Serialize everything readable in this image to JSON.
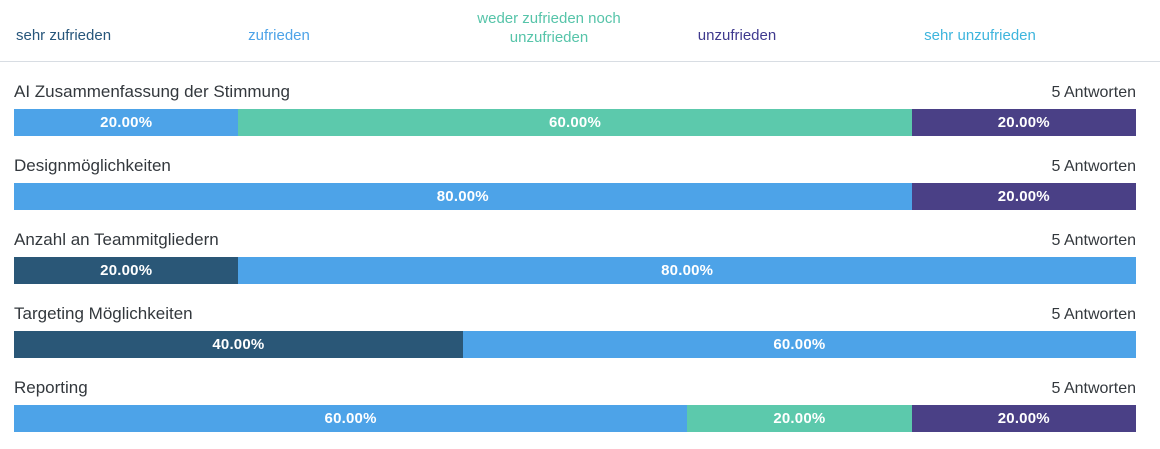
{
  "legend": {
    "items": [
      {
        "key": "sehr_zufrieden",
        "label": "sehr zufrieden",
        "color": "#27567b"
      },
      {
        "key": "zufrieden",
        "label": "zufrieden",
        "color": "#4da3e8"
      },
      {
        "key": "weder",
        "label": "weder zufrieden noch unzufrieden",
        "color": "#56c4a9"
      },
      {
        "key": "unzufrieden",
        "label": "unzufrieden",
        "color": "#3f3a8e"
      },
      {
        "key": "sehr_unzufrieden",
        "label": "sehr unzufrieden",
        "color": "#3eb5dd"
      }
    ]
  },
  "palette": {
    "sehr_zufrieden": "#2a5777",
    "zufrieden": "#4da3e8",
    "weder": "#5cc9ac",
    "unzufrieden": "#4a4086",
    "sehr_unzufrieden": "#3eb5dd"
  },
  "rows": [
    {
      "label": "AI Zusammenfassung der Stimmung",
      "answers": "5 Antworten",
      "segments": [
        {
          "category": "zufrieden",
          "value": 20,
          "display": "20.00%"
        },
        {
          "category": "weder",
          "value": 60,
          "display": "60.00%"
        },
        {
          "category": "unzufrieden",
          "value": 20,
          "display": "20.00%"
        }
      ]
    },
    {
      "label": "Designmöglichkeiten",
      "answers": "5 Antworten",
      "segments": [
        {
          "category": "zufrieden",
          "value": 80,
          "display": "80.00%"
        },
        {
          "category": "unzufrieden",
          "value": 20,
          "display": "20.00%"
        }
      ]
    },
    {
      "label": "Anzahl an Teammitgliedern",
      "answers": "5 Antworten",
      "segments": [
        {
          "category": "sehr_zufrieden",
          "value": 20,
          "display": "20.00%"
        },
        {
          "category": "zufrieden",
          "value": 80,
          "display": "80.00%"
        }
      ]
    },
    {
      "label": "Targeting Möglichkeiten",
      "answers": "5 Antworten",
      "segments": [
        {
          "category": "sehr_zufrieden",
          "value": 40,
          "display": "40.00%"
        },
        {
          "category": "zufrieden",
          "value": 60,
          "display": "60.00%"
        }
      ]
    },
    {
      "label": "Reporting",
      "answers": "5 Antworten",
      "segments": [
        {
          "category": "zufrieden",
          "value": 60,
          "display": "60.00%"
        },
        {
          "category": "weder",
          "value": 20,
          "display": "20.00%"
        },
        {
          "category": "unzufrieden",
          "value": 20,
          "display": "20.00%"
        }
      ]
    }
  ],
  "chart_data": {
    "type": "bar",
    "variant": "horizontal-stacked-likert",
    "units": "percent",
    "xlim": [
      0,
      100
    ],
    "grid": false,
    "legend_position": "top",
    "legend": [
      "sehr zufrieden",
      "zufrieden",
      "weder zufrieden noch unzufrieden",
      "unzufrieden",
      "sehr unzufrieden"
    ],
    "categories": [
      "AI Zusammenfassung der Stimmung",
      "Designmöglichkeiten",
      "Anzahl an Teammitgliedern",
      "Targeting Möglichkeiten",
      "Reporting"
    ],
    "response_counts": [
      "5 Antworten",
      "5 Antworten",
      "5 Antworten",
      "5 Antworten",
      "5 Antworten"
    ],
    "series": [
      {
        "name": "sehr zufrieden",
        "color": "#2a5777",
        "values": [
          0,
          0,
          20,
          40,
          0
        ]
      },
      {
        "name": "zufrieden",
        "color": "#4da3e8",
        "values": [
          20,
          80,
          80,
          60,
          60
        ]
      },
      {
        "name": "weder zufrieden noch unzufrieden",
        "color": "#5cc9ac",
        "values": [
          60,
          0,
          0,
          0,
          20
        ]
      },
      {
        "name": "unzufrieden",
        "color": "#4a4086",
        "values": [
          20,
          20,
          0,
          0,
          20
        ]
      },
      {
        "name": "sehr unzufrieden",
        "color": "#3eb5dd",
        "values": [
          0,
          0,
          0,
          0,
          0
        ]
      }
    ]
  }
}
